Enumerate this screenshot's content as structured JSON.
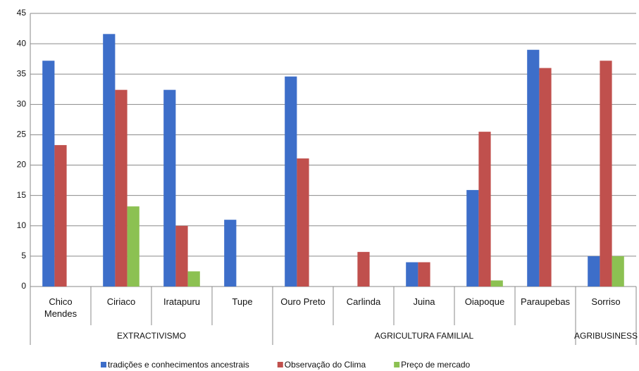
{
  "chart_data": {
    "type": "bar",
    "categories": [
      "Chico Mendes",
      "Ciriaco",
      "Iratapuru",
      "Tupe",
      "Ouro Preto",
      "Carlinda",
      "Juina",
      "Oiapoque",
      "Paraupebas",
      "Sorriso"
    ],
    "groups": [
      {
        "label": "EXTRACTIVISMO",
        "members": [
          "Chico Mendes",
          "Ciriaco",
          "Iratapuru",
          "Tupe"
        ]
      },
      {
        "label": "AGRICULTURA FAMILIAL",
        "members": [
          "Ouro Preto",
          "Carlinda",
          "Juina",
          "Oiapoque",
          "Paraupebas"
        ]
      },
      {
        "label": "AGRIBUSINESS",
        "members": [
          "Sorriso"
        ]
      }
    ],
    "series": [
      {
        "name": "tradições e conhecimentos ancestrais",
        "color": "#3d6ec9",
        "values": [
          37.2,
          41.6,
          32.4,
          11,
          34.6,
          null,
          4,
          15.9,
          39,
          5
        ]
      },
      {
        "name": "Observação do Clima",
        "color": "#c0504d",
        "values": [
          23.3,
          32.4,
          10,
          null,
          21.1,
          5.7,
          4,
          25.5,
          36,
          37.2
        ]
      },
      {
        "name": "Preço de mercado",
        "color": "#8cc152",
        "values": [
          null,
          13.2,
          2.5,
          null,
          null,
          null,
          null,
          1,
          null,
          5
        ]
      }
    ],
    "ylim": [
      0,
      45
    ],
    "yticks": [
      0,
      5,
      10,
      15,
      20,
      25,
      30,
      35,
      40,
      45
    ],
    "grid": true,
    "legend": "bottom"
  }
}
